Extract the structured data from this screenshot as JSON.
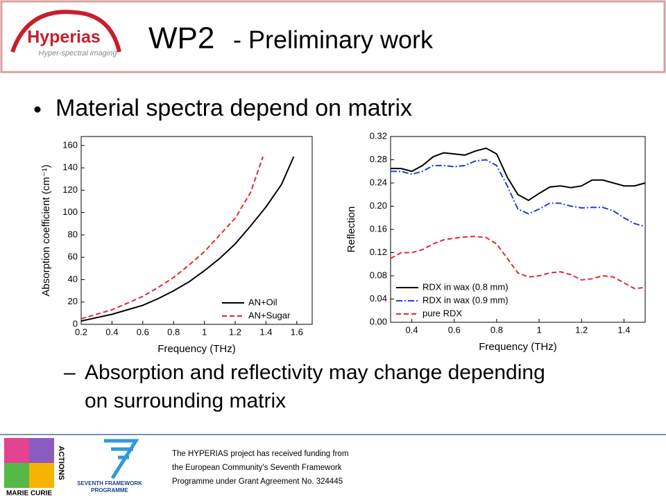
{
  "header": {
    "logo_name": "Hyperias",
    "logo_tagline": "Hyper-spectral imaging",
    "title_main": "WP2",
    "title_sub": "- Preliminary work"
  },
  "bullet": "Material spectra depend on matrix",
  "sub_bullet": [
    "Absorption and reflectivity may change depending",
    "on surrounding matrix"
  ],
  "footer": {
    "logo_left": [
      "MARIE CURIE",
      "ACTIONS"
    ],
    "logo_right": [
      "SEVENTH FRAMEWORK",
      "PROGRAMME"
    ],
    "text": [
      "The HYPERIAS project has received funding from",
      "the European Community's Seventh Framework",
      "Programme under Grant Agreement No. 324445"
    ]
  },
  "chart_data": [
    {
      "type": "line",
      "xlabel": "Frequency (THz)",
      "ylabel": "Absorption coefficient (cm⁻¹)",
      "xlim": [
        0.2,
        1.7
      ],
      "ylim": [
        0,
        168
      ],
      "xticks": [
        0.2,
        0.4,
        0.6,
        0.8,
        1.0,
        1.2,
        1.4,
        1.6
      ],
      "yticks": [
        0,
        20,
        40,
        60,
        80,
        100,
        120,
        140,
        160
      ],
      "legend": "lower right",
      "series": [
        {
          "name": "AN+Oil",
          "color": "#000000",
          "line_style": "solid",
          "x": [
            0.2,
            0.3,
            0.4,
            0.5,
            0.6,
            0.7,
            0.8,
            0.9,
            1.0,
            1.1,
            1.2,
            1.3,
            1.4,
            1.5,
            1.58
          ],
          "values": [
            3,
            6,
            9,
            13,
            17,
            23,
            30,
            38,
            48,
            59,
            72,
            88,
            105,
            125,
            150
          ]
        },
        {
          "name": "AN+Sugar",
          "color": "#e8252a",
          "line_style": "dashed",
          "x": [
            0.2,
            0.3,
            0.4,
            0.5,
            0.6,
            0.7,
            0.8,
            0.9,
            1.0,
            1.1,
            1.2,
            1.3,
            1.38
          ],
          "values": [
            5,
            9,
            13,
            19,
            25,
            33,
            42,
            53,
            65,
            80,
            95,
            118,
            150
          ]
        }
      ]
    },
    {
      "type": "line",
      "xlabel": "Frequency (THz)",
      "ylabel": "Reflection",
      "xlim": [
        0.3,
        1.5
      ],
      "ylim": [
        0,
        0.32
      ],
      "xticks": [
        0.4,
        0.6,
        0.8,
        1.0,
        1.2,
        1.4
      ],
      "yticks": [
        {
          "value": 0,
          "label": "0.00"
        },
        {
          "value": 0.04,
          "label": "0.04"
        },
        {
          "value": 0.08,
          "label": "0.08"
        },
        {
          "value": 0.12,
          "label": "0.12"
        },
        {
          "value": 0.16,
          "label": "0.16"
        },
        {
          "value": 0.2,
          "label": "0.20"
        },
        {
          "value": 0.24,
          "label": "0.24"
        },
        {
          "value": 0.28,
          "label": "0.28"
        },
        {
          "value": 0.32,
          "label": "0.32"
        }
      ],
      "legend": "lower left",
      "x": [
        0.3,
        0.35,
        0.4,
        0.45,
        0.5,
        0.55,
        0.6,
        0.65,
        0.7,
        0.75,
        0.8,
        0.85,
        0.9,
        0.95,
        1.0,
        1.05,
        1.1,
        1.15,
        1.2,
        1.25,
        1.3,
        1.35,
        1.4,
        1.45,
        1.5
      ],
      "series": [
        {
          "name": "RDX in wax (0.8 mm)",
          "color": "#000000",
          "line_style": "solid",
          "values": [
            0.265,
            0.265,
            0.26,
            0.27,
            0.285,
            0.292,
            0.29,
            0.288,
            0.295,
            0.3,
            0.29,
            0.25,
            0.22,
            0.21,
            0.222,
            0.233,
            0.235,
            0.232,
            0.235,
            0.245,
            0.245,
            0.24,
            0.235,
            0.235,
            0.24
          ]
        },
        {
          "name": "RDX in wax (0.9 mm)",
          "color": "#1f3fd0",
          "line_style": "dash-dot",
          "values": [
            0.26,
            0.26,
            0.255,
            0.26,
            0.27,
            0.27,
            0.268,
            0.27,
            0.278,
            0.28,
            0.27,
            0.235,
            0.195,
            0.187,
            0.195,
            0.205,
            0.205,
            0.2,
            0.197,
            0.198,
            0.198,
            0.192,
            0.18,
            0.17,
            0.165
          ]
        },
        {
          "name": "pure RDX",
          "color": "#e8252a",
          "line_style": "dashed",
          "values": [
            0.11,
            0.12,
            0.12,
            0.125,
            0.135,
            0.142,
            0.145,
            0.147,
            0.148,
            0.146,
            0.135,
            0.11,
            0.085,
            0.078,
            0.08,
            0.085,
            0.087,
            0.082,
            0.073,
            0.075,
            0.08,
            0.078,
            0.068,
            0.058,
            0.06
          ]
        }
      ]
    }
  ]
}
